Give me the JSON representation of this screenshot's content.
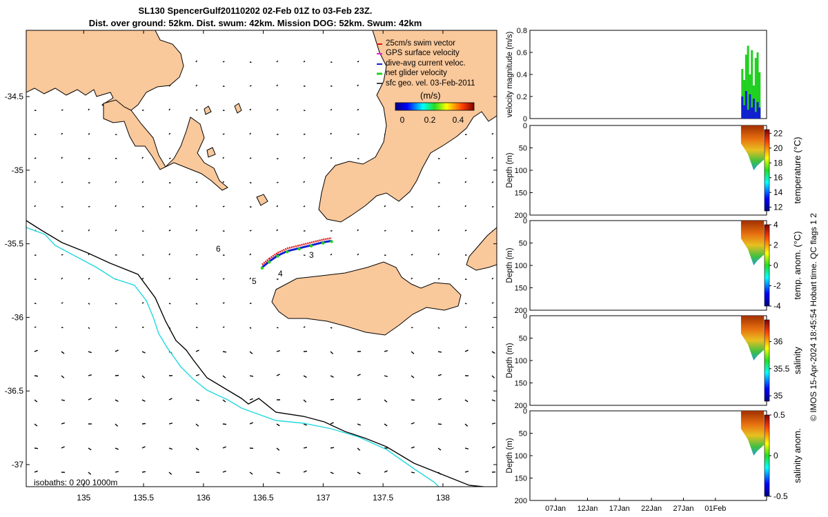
{
  "title": {
    "line1": "SL130 SpencerGulf20110202 02-Feb 01Z to 03-Feb 23Z.",
    "line2": "Dist. over ground: 52km. Dist. swum: 42km. Mission DOG: 52km. Swum: 42km"
  },
  "map": {
    "x_ticks": [
      "135",
      "135.5",
      "136",
      "136.5",
      "137",
      "137.5",
      "138"
    ],
    "y_ticks": [
      "-34.5",
      "-35",
      "-35.5",
      "-36",
      "-36.5",
      "-37"
    ],
    "legend": [
      {
        "label": "25cm/s swim vector",
        "color": "#e01010"
      },
      {
        "label": "GPS surface velocity",
        "color": "#e020e0"
      },
      {
        "label": "dive-avg current veloc.",
        "color": "#1020d0"
      },
      {
        "label": "net glider velocity",
        "color": "#20d020"
      },
      {
        "label": "sfc geo. vel. 03-Feb-2011",
        "color": "#000000"
      }
    ],
    "colorbar_title": "(m/s)",
    "colorbar_ticks": [
      "0",
      "0.2",
      "0.4"
    ],
    "isobaths_label": "isobaths: 0   200  1000m",
    "profile_numbers": [
      "6",
      "5",
      "4",
      "3"
    ],
    "land_color": "#f9c89b",
    "isobath_200_color": "#000000",
    "isobath_1000_color": "#20d8e0"
  },
  "panels": {
    "x_ticks": [
      "07Jan",
      "12Jan",
      "17Jan",
      "22Jan",
      "27Jan",
      "01Feb"
    ],
    "velocity": {
      "ylabel": "velocity magnitude (m/s)",
      "y_ticks": [
        "0",
        "0.2",
        "0.4",
        "0.6",
        "0.8"
      ]
    },
    "depth_ylabel": "Depth (m)",
    "depth_ticks": [
      "0",
      "50",
      "100",
      "150",
      "200"
    ],
    "temperature": {
      "colorbar_label": "temperature (°C)",
      "ticks": [
        "12",
        "14",
        "16",
        "18",
        "20",
        "22"
      ]
    },
    "temp_anom": {
      "colorbar_label": "temp. anom. (°C)",
      "ticks": [
        "-4",
        "-2",
        "0",
        "2",
        "4"
      ]
    },
    "salinity": {
      "colorbar_label": "salinity",
      "ticks": [
        "35",
        "35.5",
        "36"
      ]
    },
    "sal_anom": {
      "colorbar_label": "salinity anom.",
      "ticks": [
        "-0.5",
        "0",
        "0.5"
      ]
    }
  },
  "side_caption": "© IMOS 15-Apr-2024 18:45:54 Hobart time. QC flags 1  2",
  "chart_data": [
    {
      "type": "scatter",
      "title": "SL130 SpencerGulf20110202 02-Feb 01Z to 03-Feb 23Z.",
      "xlabel": "",
      "ylabel": "",
      "xlim": [
        134.52,
        138.45
      ],
      "ylim": [
        -37.15,
        -34.05
      ],
      "series": [
        {
          "name": "net glider velocity",
          "x": [
            136.49,
            136.55,
            136.62,
            136.7,
            136.8,
            136.9,
            137.0,
            137.07
          ],
          "y": [
            -35.66,
            -35.62,
            -35.58,
            -35.55,
            -35.53,
            -35.51,
            -35.49,
            -35.48
          ]
        }
      ]
    },
    {
      "type": "line",
      "xlabel": "",
      "ylabel": "velocity magnitude (m/s)",
      "categories": [
        "07Jan",
        "12Jan",
        "17Jan",
        "22Jan",
        "27Jan",
        "01Feb"
      ],
      "ylim": [
        0,
        0.8
      ],
      "series": [
        {
          "name": "net glider velocity",
          "x": [
            33.2,
            33.5,
            33.8,
            34.1,
            34.4,
            34.7,
            35.0,
            35.3,
            35.6,
            35.9
          ],
          "values": [
            0.45,
            0.35,
            0.58,
            0.66,
            0.4,
            0.62,
            0.3,
            0.55,
            0.6,
            0.42
          ]
        },
        {
          "name": "dive-avg current veloc.",
          "x": [
            33.2,
            33.5,
            33.8,
            34.1,
            34.4,
            34.7,
            35.0,
            35.3,
            35.6,
            35.9
          ],
          "values": [
            0.2,
            0.12,
            0.25,
            0.08,
            0.22,
            0.1,
            0.18,
            0.06,
            0.15,
            0.1
          ]
        }
      ]
    },
    {
      "type": "heatmap",
      "ylabel": "Depth (m)",
      "ylim": [
        200,
        0
      ],
      "colorbar": "temperature (°C)",
      "clim": [
        11.5,
        22.5
      ]
    },
    {
      "type": "heatmap",
      "ylabel": "Depth (m)",
      "ylim": [
        200,
        0
      ],
      "colorbar": "temp. anom. (°C)",
      "clim": [
        -4,
        4
      ]
    },
    {
      "type": "heatmap",
      "ylabel": "Depth (m)",
      "ylim": [
        200,
        0
      ],
      "colorbar": "salinity",
      "clim": [
        34.9,
        36.4
      ]
    },
    {
      "type": "heatmap",
      "ylabel": "Depth (m)",
      "ylim": [
        200,
        0
      ],
      "colorbar": "salinity anom.",
      "clim": [
        -0.5,
        0.5
      ]
    }
  ]
}
